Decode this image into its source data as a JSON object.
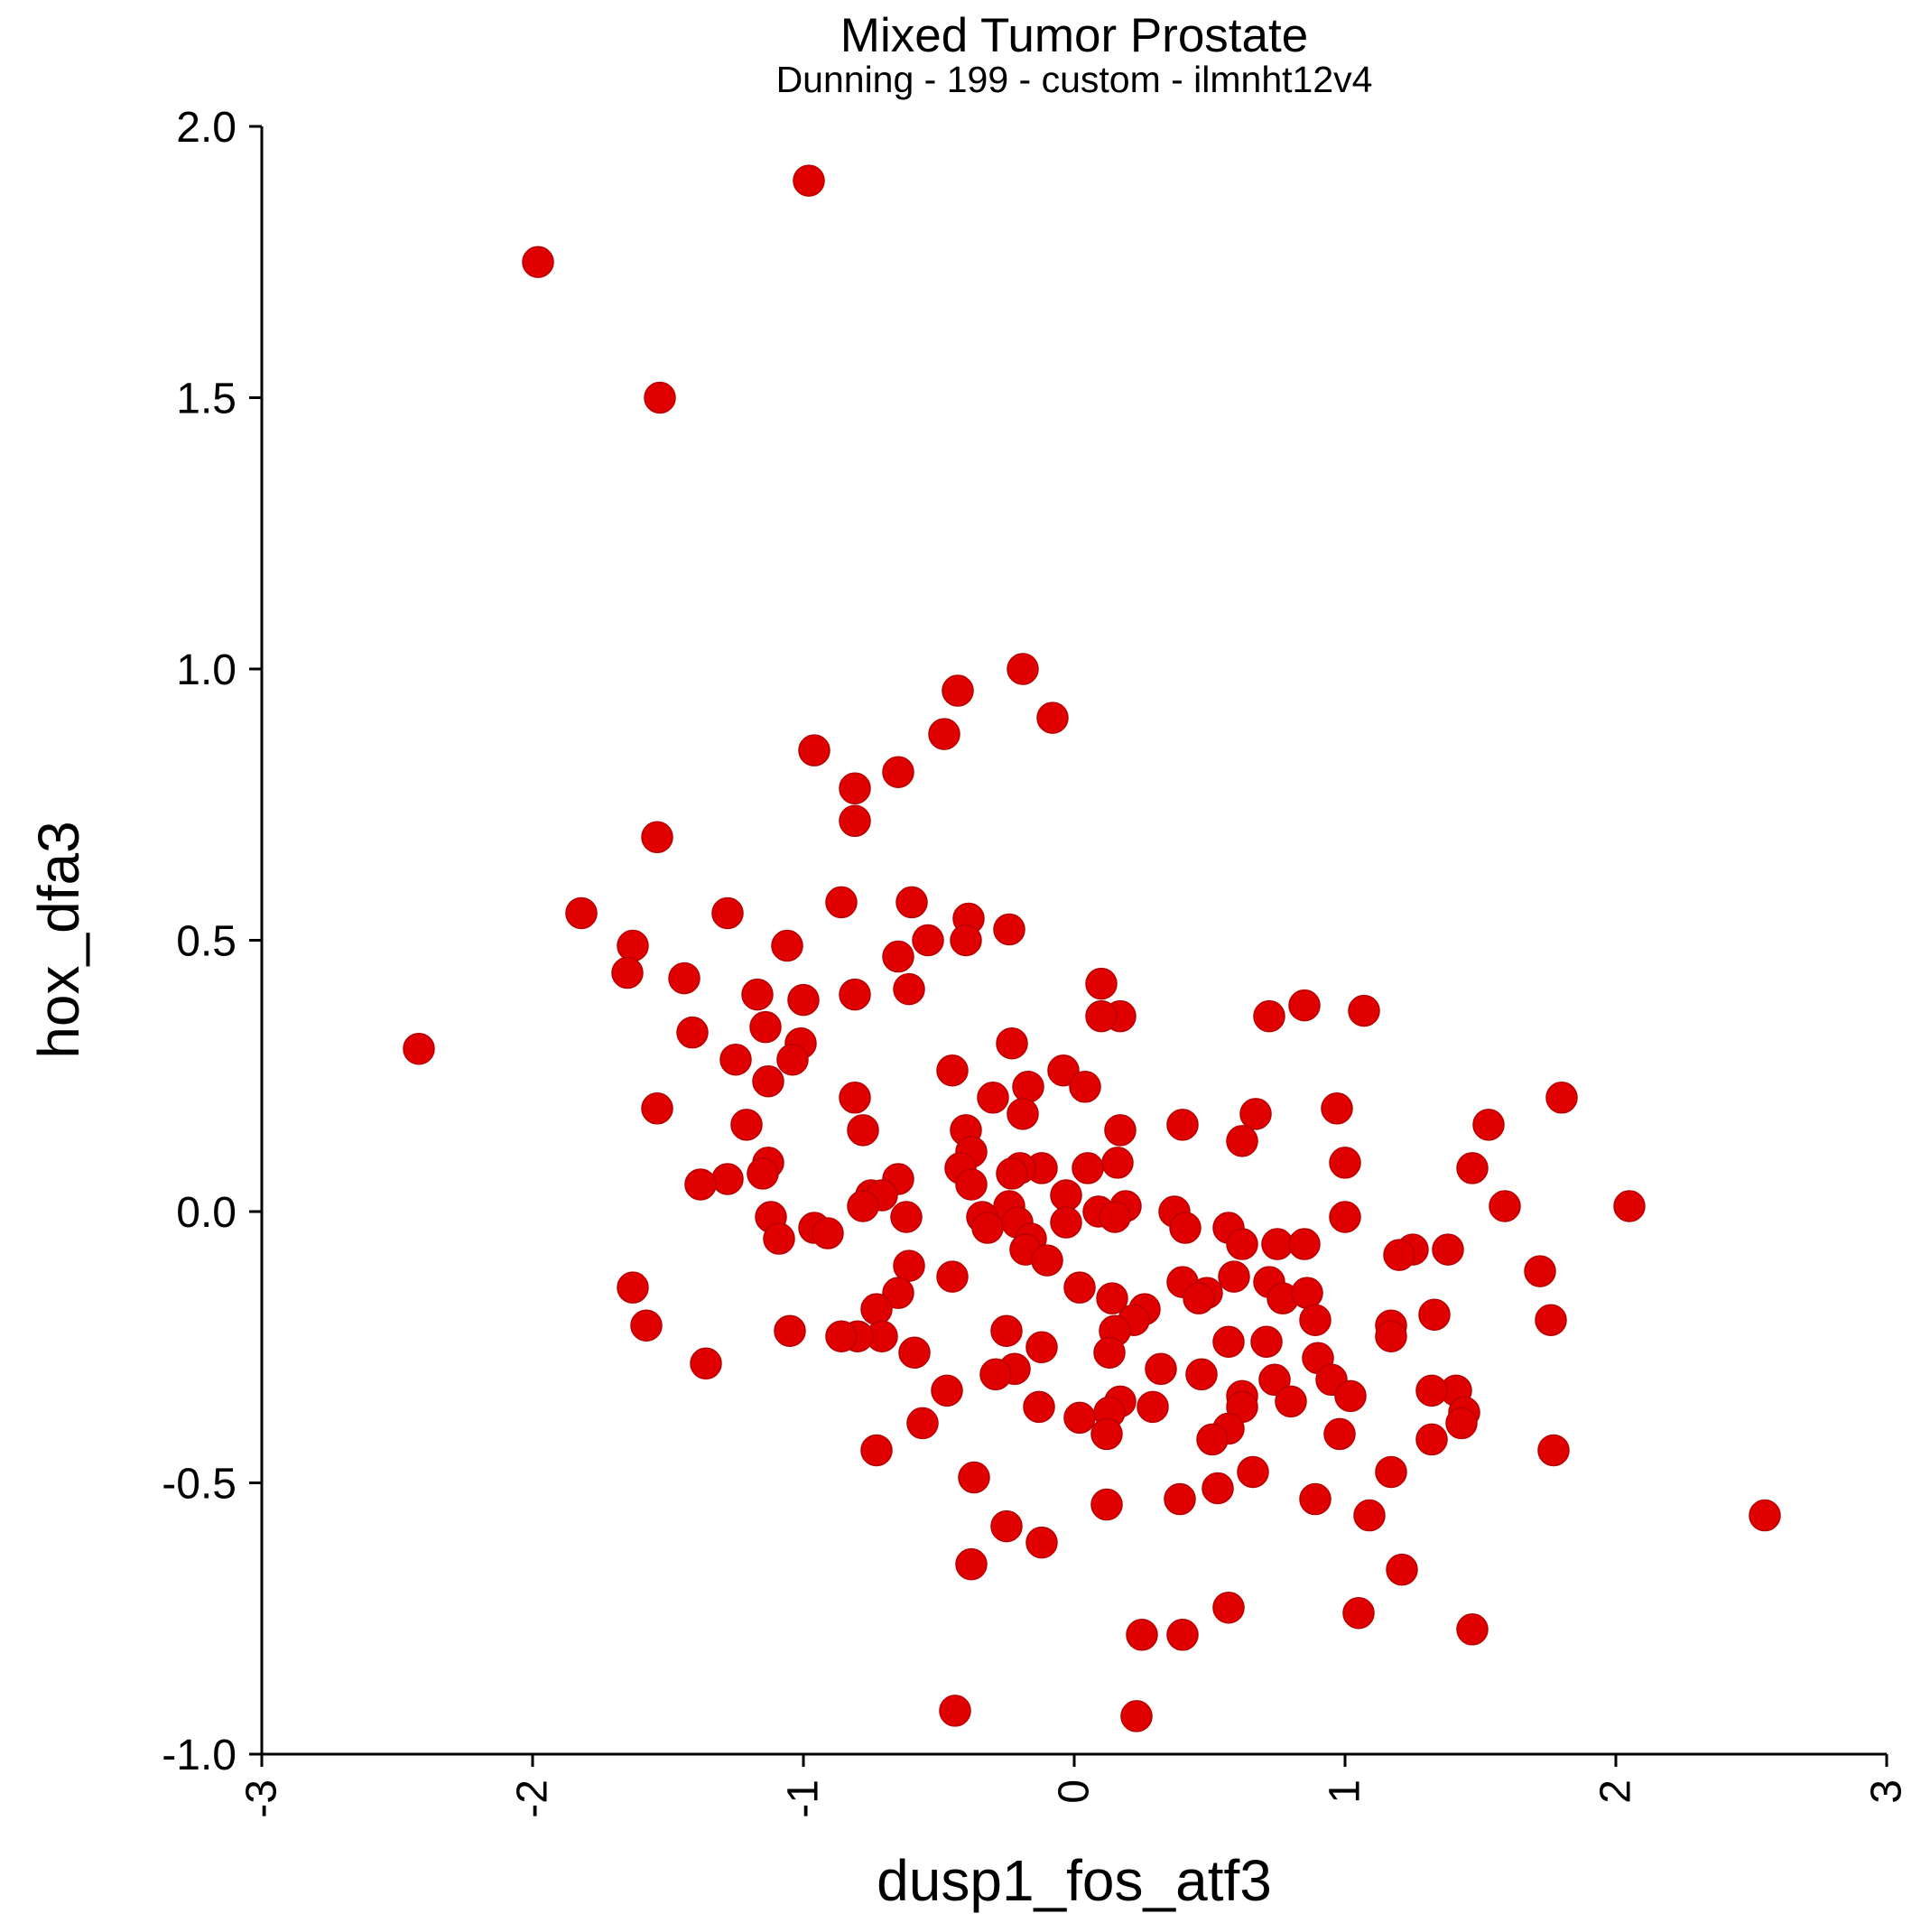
{
  "chart_data": {
    "type": "scatter",
    "title": "Mixed Tumor Prostate",
    "subtitle": "Dunning - 199 - custom - ilmnht12v4",
    "xlabel": "dusp1_fos_atf3",
    "ylabel": "hox_dfa3",
    "xlim": [
      -3,
      3
    ],
    "ylim": [
      -1.0,
      2.0
    ],
    "x_ticks": [
      "-3",
      "-2",
      "-1",
      "0",
      "1",
      "2",
      "3"
    ],
    "y_ticks": [
      "2.0",
      "1.5",
      "1.0",
      "0.5",
      "0.0",
      "-0.5",
      "-1.0"
    ],
    "grid": false,
    "legend": "none",
    "marker_color": "#e00000",
    "points": [
      [
        -0.98,
        1.9
      ],
      [
        -1.98,
        1.75
      ],
      [
        -1.53,
        1.5
      ],
      [
        -2.42,
        0.3
      ],
      [
        -0.19,
        1.0
      ],
      [
        -0.43,
        0.96
      ],
      [
        -0.08,
        0.91
      ],
      [
        -0.48,
        0.88
      ],
      [
        -0.96,
        0.85
      ],
      [
        -0.65,
        0.81
      ],
      [
        -0.81,
        0.78
      ],
      [
        -0.81,
        0.72
      ],
      [
        -1.54,
        0.69
      ],
      [
        -0.86,
        0.57
      ],
      [
        -0.6,
        0.57
      ],
      [
        -1.28,
        0.55
      ],
      [
        -1.82,
        0.55
      ],
      [
        -0.39,
        0.54
      ],
      [
        -0.24,
        0.52
      ],
      [
        -0.4,
        0.5
      ],
      [
        -0.54,
        0.5
      ],
      [
        -1.06,
        0.49
      ],
      [
        -1.63,
        0.49
      ],
      [
        -0.65,
        0.47
      ],
      [
        -1.65,
        0.44
      ],
      [
        -1.44,
        0.43
      ],
      [
        0.1,
        0.42
      ],
      [
        -0.61,
        0.41
      ],
      [
        -1.17,
        0.4
      ],
      [
        -1.0,
        0.39
      ],
      [
        -0.81,
        0.4
      ],
      [
        0.85,
        0.38
      ],
      [
        1.07,
        0.37
      ],
      [
        0.72,
        0.36
      ],
      [
        0.17,
        0.36
      ],
      [
        0.1,
        0.36
      ],
      [
        -1.14,
        0.34
      ],
      [
        -1.41,
        0.33
      ],
      [
        -0.23,
        0.31
      ],
      [
        -1.01,
        0.31
      ],
      [
        -1.04,
        0.28
      ],
      [
        -1.25,
        0.28
      ],
      [
        -0.45,
        0.26
      ],
      [
        -0.04,
        0.26
      ],
      [
        0.04,
        0.23
      ],
      [
        -1.13,
        0.24
      ],
      [
        -0.17,
        0.23
      ],
      [
        -0.3,
        0.21
      ],
      [
        1.8,
        0.21
      ],
      [
        -0.81,
        0.21
      ],
      [
        -1.54,
        0.19
      ],
      [
        0.97,
        0.19
      ],
      [
        0.67,
        0.18
      ],
      [
        -0.19,
        0.18
      ],
      [
        1.53,
        0.16
      ],
      [
        -1.21,
        0.16
      ],
      [
        0.4,
        0.16
      ],
      [
        0.17,
        0.15
      ],
      [
        -0.78,
        0.15
      ],
      [
        -0.4,
        0.15
      ],
      [
        0.62,
        0.13
      ],
      [
        -0.38,
        0.11
      ],
      [
        0.16,
        0.09
      ],
      [
        1.0,
        0.09
      ],
      [
        -0.12,
        0.08
      ],
      [
        -0.2,
        0.08
      ],
      [
        -1.13,
        0.09
      ],
      [
        -0.42,
        0.08
      ],
      [
        1.47,
        0.08
      ],
      [
        -0.23,
        0.07
      ],
      [
        -1.15,
        0.07
      ],
      [
        0.05,
        0.08
      ],
      [
        -1.28,
        0.06
      ],
      [
        -1.38,
        0.05
      ],
      [
        -0.65,
        0.06
      ],
      [
        -0.38,
        0.05
      ],
      [
        -0.75,
        0.03
      ],
      [
        -0.03,
        0.03
      ],
      [
        -0.71,
        0.03
      ],
      [
        -0.78,
        0.01
      ],
      [
        0.19,
        0.01
      ],
      [
        1.59,
        0.01
      ],
      [
        2.05,
        0.01
      ],
      [
        -0.24,
        0.01
      ],
      [
        0.09,
        0.0
      ],
      [
        0.37,
        0.0
      ],
      [
        -0.34,
        -0.01
      ],
      [
        0.15,
        -0.01
      ],
      [
        -0.62,
        -0.01
      ],
      [
        -1.12,
        -0.01
      ],
      [
        1.0,
        -0.01
      ],
      [
        -0.21,
        -0.02
      ],
      [
        -0.03,
        -0.02
      ],
      [
        0.41,
        -0.03
      ],
      [
        0.57,
        -0.03
      ],
      [
        -0.96,
        -0.03
      ],
      [
        -0.32,
        -0.03
      ],
      [
        -0.91,
        -0.04
      ],
      [
        -1.09,
        -0.05
      ],
      [
        -0.16,
        -0.05
      ],
      [
        0.62,
        -0.06
      ],
      [
        0.75,
        -0.06
      ],
      [
        0.85,
        -0.06
      ],
      [
        -0.18,
        -0.07
      ],
      [
        1.25,
        -0.07
      ],
      [
        1.38,
        -0.07
      ],
      [
        1.2,
        -0.08
      ],
      [
        -0.1,
        -0.09
      ],
      [
        -0.61,
        -0.1
      ],
      [
        1.72,
        -0.11
      ],
      [
        -0.45,
        -0.12
      ],
      [
        0.59,
        -0.12
      ],
      [
        0.4,
        -0.13
      ],
      [
        0.72,
        -0.13
      ],
      [
        0.02,
        -0.14
      ],
      [
        -1.63,
        -0.14
      ],
      [
        0.49,
        -0.15
      ],
      [
        0.77,
        -0.16
      ],
      [
        0.86,
        -0.15
      ],
      [
        -0.65,
        -0.15
      ],
      [
        0.46,
        -0.16
      ],
      [
        0.14,
        -0.16
      ],
      [
        -0.73,
        -0.18
      ],
      [
        0.26,
        -0.18
      ],
      [
        0.22,
        -0.2
      ],
      [
        1.33,
        -0.19
      ],
      [
        0.89,
        -0.2
      ],
      [
        1.76,
        -0.2
      ],
      [
        -1.58,
        -0.21
      ],
      [
        1.17,
        -0.21
      ],
      [
        -1.05,
        -0.22
      ],
      [
        -0.25,
        -0.22
      ],
      [
        0.15,
        -0.22
      ],
      [
        1.17,
        -0.23
      ],
      [
        -0.71,
        -0.23
      ],
      [
        -0.8,
        -0.23
      ],
      [
        -0.86,
        -0.23
      ],
      [
        0.57,
        -0.24
      ],
      [
        0.71,
        -0.24
      ],
      [
        -0.12,
        -0.25
      ],
      [
        -0.59,
        -0.26
      ],
      [
        0.13,
        -0.26
      ],
      [
        0.9,
        -0.27
      ],
      [
        -1.36,
        -0.28
      ],
      [
        0.32,
        -0.29
      ],
      [
        -0.22,
        -0.29
      ],
      [
        -0.29,
        -0.3
      ],
      [
        0.47,
        -0.3
      ],
      [
        0.74,
        -0.31
      ],
      [
        0.95,
        -0.31
      ],
      [
        1.02,
        -0.34
      ],
      [
        0.62,
        -0.34
      ],
      [
        1.41,
        -0.33
      ],
      [
        1.32,
        -0.33
      ],
      [
        0.8,
        -0.35
      ],
      [
        0.17,
        -0.35
      ],
      [
        -0.47,
        -0.33
      ],
      [
        0.29,
        -0.36
      ],
      [
        -0.13,
        -0.36
      ],
      [
        0.62,
        -0.36
      ],
      [
        0.13,
        -0.37
      ],
      [
        1.44,
        -0.37
      ],
      [
        1.43,
        -0.39
      ],
      [
        0.02,
        -0.38
      ],
      [
        -0.56,
        -0.39
      ],
      [
        0.57,
        -0.4
      ],
      [
        0.12,
        -0.41
      ],
      [
        0.51,
        -0.42
      ],
      [
        0.98,
        -0.41
      ],
      [
        1.32,
        -0.42
      ],
      [
        1.77,
        -0.44
      ],
      [
        -0.73,
        -0.44
      ],
      [
        0.66,
        -0.48
      ],
      [
        1.17,
        -0.48
      ],
      [
        -0.37,
        -0.49
      ],
      [
        0.53,
        -0.51
      ],
      [
        0.39,
        -0.53
      ],
      [
        0.89,
        -0.53
      ],
      [
        0.12,
        -0.54
      ],
      [
        2.55,
        -0.56
      ],
      [
        1.09,
        -0.56
      ],
      [
        -0.25,
        -0.58
      ],
      [
        -0.12,
        -0.61
      ],
      [
        -0.38,
        -0.65
      ],
      [
        1.21,
        -0.66
      ],
      [
        0.57,
        -0.73
      ],
      [
        1.05,
        -0.74
      ],
      [
        1.47,
        -0.77
      ],
      [
        0.25,
        -0.78
      ],
      [
        0.4,
        -0.78
      ],
      [
        -0.44,
        -0.92
      ],
      [
        0.23,
        -0.93
      ]
    ]
  }
}
